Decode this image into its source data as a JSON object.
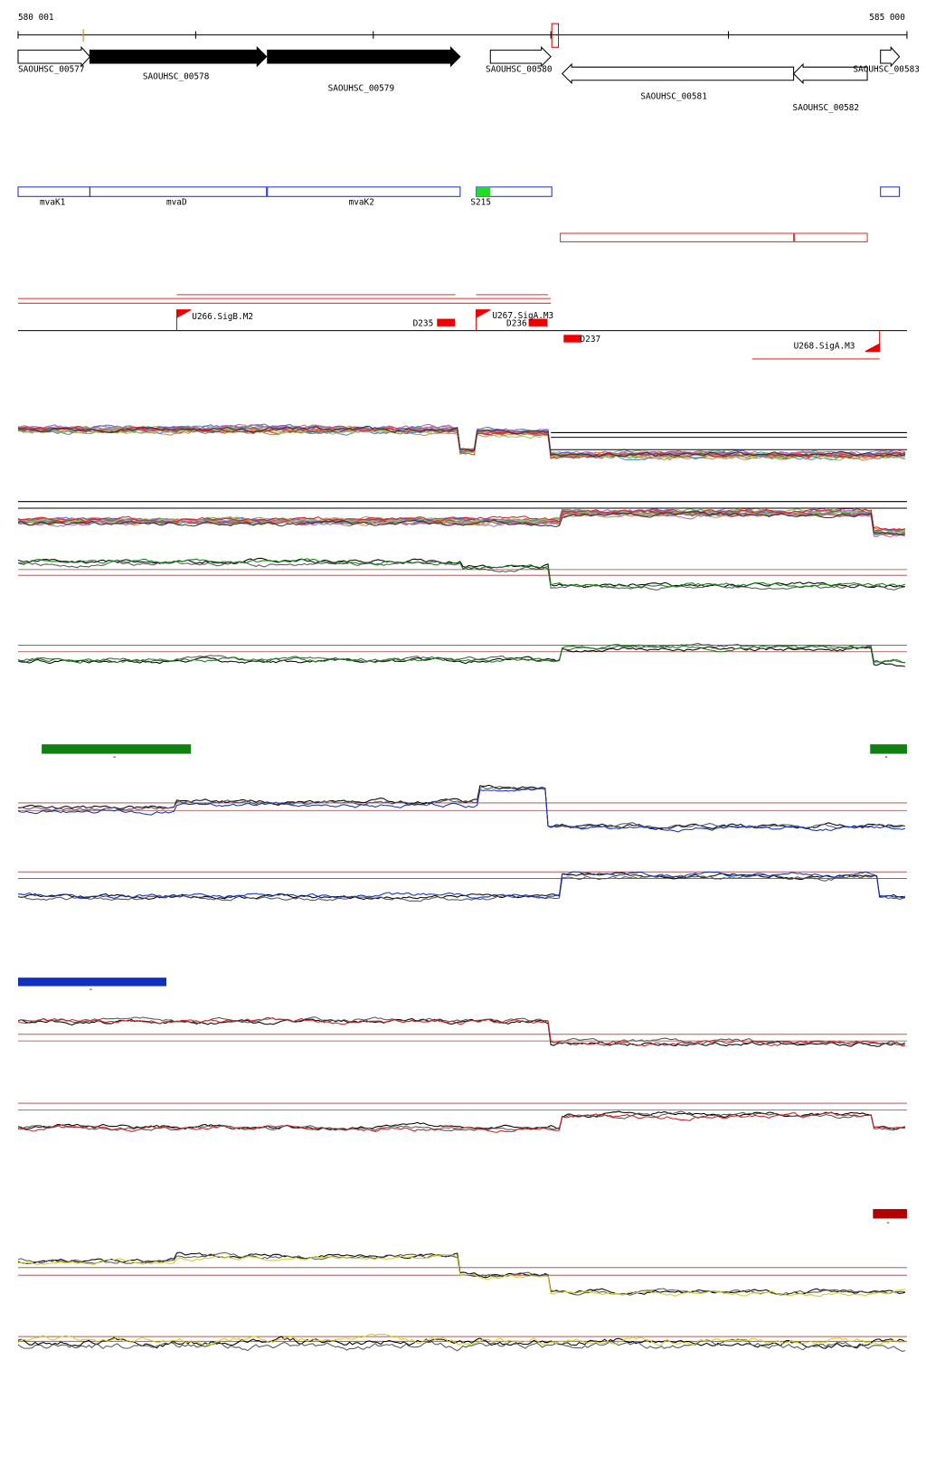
{
  "ruler": {
    "start": "580 001",
    "end": "585 000"
  },
  "genes": [
    "SAOUHSC_00577",
    "SAOUHSC_00578",
    "SAOUHSC_00579",
    "SAOUHSC_00580",
    "SAOUHSC_00581",
    "SAOUHSC_00582",
    "SAOUHSC_00583"
  ],
  "features": [
    "mvaK1",
    "mvaD",
    "mvaK2",
    "S215"
  ],
  "promoters": [
    "U266.SigB.M2",
    "U267.SigA.M3",
    "U268.SigA.M3"
  ],
  "terminators": [
    "D235",
    "D236",
    "D237"
  ],
  "track_labels": [
    "-",
    "-",
    "-",
    "-"
  ]
}
